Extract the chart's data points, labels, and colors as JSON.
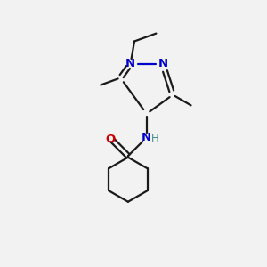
{
  "background_color": "#f2f2f2",
  "bond_color": "#1a1a1a",
  "N_color": "#0000cc",
  "O_color": "#cc0000",
  "H_color": "#3d8c8c",
  "line_width": 1.6,
  "figsize": [
    3.0,
    3.0
  ],
  "dpi": 100,
  "xlim": [
    0,
    10
  ],
  "ylim": [
    0,
    10
  ]
}
